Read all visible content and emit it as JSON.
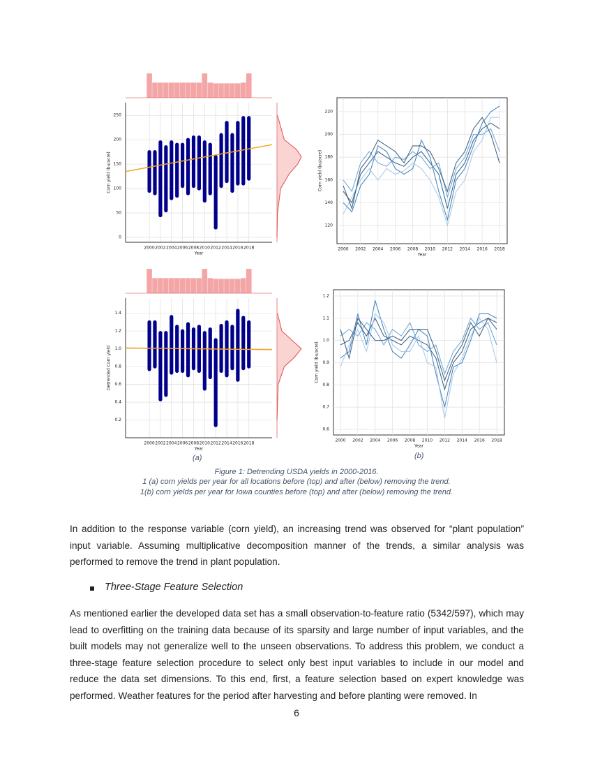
{
  "chart_data": [
    {
      "type": "strip",
      "x_label": "Year",
      "y_label": "Corn yield (bu/acre)",
      "x": [
        2000,
        2001,
        2002,
        2003,
        2004,
        2005,
        2006,
        2007,
        2008,
        2009,
        2010,
        2011,
        2012,
        2013,
        2014,
        2015,
        2016,
        2017,
        2018
      ],
      "min": [
        95,
        90,
        45,
        55,
        80,
        85,
        105,
        90,
        105,
        100,
        75,
        90,
        20,
        105,
        115,
        95,
        110,
        110,
        120
      ],
      "max": [
        175,
        175,
        195,
        185,
        195,
        190,
        190,
        200,
        205,
        205,
        195,
        190,
        165,
        210,
        235,
        210,
        235,
        245,
        245
      ],
      "color": "#00008b",
      "trend": {
        "x": [
          1995.7,
          2022.2
        ],
        "y": [
          135,
          190
        ],
        "color": "#f5a623"
      },
      "x_hist": {
        "bins": [
          1999.5,
          2000.5,
          2001.5,
          2002.5,
          2003.5,
          2004.5,
          2005.5,
          2006.5,
          2007.5,
          2008.5,
          2009.5,
          2010.5,
          2011.5,
          2012.5,
          2013.5,
          2014.5,
          2015.5,
          2016.5,
          2017.5,
          2018.5
        ],
        "counts": [
          1.6,
          1,
          1,
          1,
          1,
          1,
          1,
          1,
          1,
          1,
          1.6,
          1,
          0.95,
          0.95,
          0.95,
          0.95,
          0.95,
          1,
          1.6
        ],
        "color": "#f08080"
      },
      "y_density": {
        "y": [
          0,
          50,
          100,
          130,
          150,
          165,
          180,
          200,
          250
        ],
        "density": [
          0,
          0.02,
          0.15,
          0.5,
          0.85,
          1,
          0.8,
          0.3,
          0.02
        ],
        "color": "#e05050"
      },
      "xlim": [
        1995.7,
        2022.2
      ],
      "ylim": [
        -10,
        276
      ],
      "xticks": [
        2000,
        2002,
        2004,
        2006,
        2008,
        2010,
        2012,
        2014,
        2016,
        2018
      ],
      "yticks": [
        0,
        50,
        100,
        150,
        200,
        250
      ],
      "grid": true
    },
    {
      "type": "strip",
      "x_label": "Year",
      "y_label": "Detrended Corn yield",
      "x": [
        2000,
        2001,
        2002,
        2003,
        2004,
        2005,
        2006,
        2007,
        2008,
        2009,
        2010,
        2011,
        2012,
        2013,
        2014,
        2015,
        2016,
        2017,
        2018
      ],
      "min": [
        0.77,
        0.8,
        0.43,
        0.48,
        0.73,
        0.75,
        0.75,
        0.7,
        0.78,
        0.75,
        0.55,
        0.68,
        0.14,
        0.75,
        0.7,
        0.78,
        0.65,
        0.78,
        0.8
      ],
      "max": [
        1.3,
        1.3,
        1.18,
        1.18,
        1.36,
        1.25,
        1.2,
        1.28,
        1.22,
        1.25,
        1.18,
        1.22,
        1.1,
        1.26,
        1.3,
        1.25,
        1.43,
        1.35,
        1.3
      ],
      "color": "#00008b",
      "trend": {
        "x": [
          1995.7,
          2022.2
        ],
        "y": [
          1.01,
          0.99
        ],
        "color": "#f5a623"
      },
      "x_hist": {
        "bins": [
          1999.5,
          2000.5,
          2001.5,
          2002.5,
          2003.5,
          2004.5,
          2005.5,
          2006.5,
          2007.5,
          2008.5,
          2009.5,
          2010.5,
          2011.5,
          2012.5,
          2013.5,
          2014.5,
          2015.5,
          2016.5,
          2017.5,
          2018.5
        ],
        "counts": [
          1.6,
          1,
          1,
          1,
          1,
          1,
          1,
          1,
          1,
          1,
          1.6,
          1,
          0.95,
          0.95,
          0.95,
          0.95,
          0.95,
          1,
          1.6
        ],
        "color": "#f08080"
      },
      "y_density": {
        "y": [
          0.2,
          0.6,
          0.8,
          0.9,
          1.0,
          1.1,
          1.2,
          1.4
        ],
        "density": [
          0,
          0.05,
          0.3,
          0.7,
          1,
          0.6,
          0.2,
          0.02
        ],
        "color": "#e05050"
      },
      "xlim": [
        1995.7,
        2022.2
      ],
      "ylim": [
        0,
        1.57
      ],
      "xticks": [
        2000,
        2002,
        2004,
        2006,
        2008,
        2010,
        2012,
        2014,
        2016,
        2018
      ],
      "yticks": [
        0.2,
        0.4,
        0.6,
        0.8,
        {
          "value": 1,
          "label": "1.0"
        },
        1.2,
        1.4
      ],
      "grid": true
    },
    {
      "type": "line",
      "x_label": "Year",
      "y_label": "Corn yield (bu/acre)",
      "x": [
        2000,
        2001,
        2002,
        2003,
        2004,
        2005,
        2006,
        2007,
        2008,
        2009,
        2010,
        2011,
        2012,
        2013,
        2014,
        2015,
        2016,
        2017,
        2018
      ],
      "series": [
        {
          "color": "#1f4e79",
          "values": [
            150,
            140,
            165,
            175,
            185,
            180,
            175,
            172,
            180,
            185,
            175,
            165,
            135,
            165,
            175,
            195,
            205,
            210,
            205
          ]
        },
        {
          "color": "#2e75b6",
          "values": [
            140,
            132,
            155,
            165,
            190,
            185,
            170,
            165,
            170,
            195,
            180,
            150,
            125,
            160,
            170,
            190,
            210,
            220,
            225
          ]
        },
        {
          "color": "#5b9bd5",
          "values": [
            160,
            150,
            175,
            185,
            175,
            172,
            180,
            178,
            185,
            180,
            170,
            175,
            145,
            170,
            180,
            200,
            200,
            205,
            185
          ]
        },
        {
          "color": "#9dc3e6",
          "values": [
            130,
            145,
            160,
            170,
            160,
            170,
            165,
            168,
            175,
            170,
            160,
            145,
            120,
            150,
            160,
            185,
            195,
            215,
            215
          ]
        },
        {
          "color": "#274e6e",
          "values": [
            155,
            135,
            170,
            180,
            195,
            190,
            185,
            175,
            190,
            190,
            185,
            170,
            150,
            175,
            185,
            205,
            215,
            200,
            175
          ]
        }
      ],
      "xlim": [
        1999.28,
        2018.88
      ],
      "ylim": [
        104,
        232.3
      ],
      "xticks": [
        2000,
        2002,
        2004,
        2006,
        2008,
        2010,
        2012,
        2014,
        2016,
        2018
      ],
      "yticks": [
        120,
        140,
        160,
        180,
        200,
        220
      ],
      "grid": true
    },
    {
      "type": "line",
      "x_label": "Year",
      "y_label": "Corn yield (bu/acre)",
      "x": [
        2000,
        2001,
        2002,
        2003,
        2004,
        2005,
        2006,
        2007,
        2008,
        2009,
        2010,
        2011,
        2012,
        2013,
        2014,
        2015,
        2016,
        2017,
        2018
      ],
      "series": [
        {
          "color": "#1f4e79",
          "values": [
            0.98,
            1.0,
            1.08,
            1.02,
            1.1,
            1.02,
            1.0,
            0.98,
            1.02,
            1.0,
            0.98,
            0.92,
            0.78,
            0.9,
            0.95,
            1.05,
            1.08,
            1.1,
            1.05
          ]
        },
        {
          "color": "#2e75b6",
          "values": [
            0.92,
            0.95,
            1.12,
            0.98,
            1.18,
            1.05,
            0.95,
            0.92,
            0.98,
            1.05,
            1.02,
            0.85,
            0.7,
            0.88,
            0.9,
            1.0,
            1.12,
            1.12,
            1.1
          ]
        },
        {
          "color": "#5b9bd5",
          "values": [
            1.02,
            1.05,
            1.02,
            1.08,
            1.05,
            0.98,
            1.05,
            1.02,
            1.08,
            0.98,
            0.95,
            0.98,
            0.85,
            0.95,
            1.0,
            1.1,
            1.05,
            1.08,
            0.98
          ]
        },
        {
          "color": "#9dc3e6",
          "values": [
            0.88,
            0.98,
            1.05,
            0.95,
            1.12,
            1.08,
            0.98,
            0.95,
            0.95,
            1.02,
            0.9,
            0.88,
            0.65,
            0.85,
            0.92,
            1.02,
            1.1,
            1.05,
            0.9
          ]
        },
        {
          "color": "#274e6e",
          "values": [
            1.05,
            0.92,
            1.1,
            1.05,
            1.0,
            1.0,
            1.02,
            1.0,
            1.05,
            1.05,
            1.05,
            0.95,
            0.82,
            0.92,
            0.98,
            1.08,
            1.02,
            1.1,
            1.08
          ]
        }
      ],
      "xlim": [
        1999.2,
        2018.88
      ],
      "ylim": [
        0.575,
        1.228
      ],
      "xticks": [
        2000,
        2002,
        2004,
        2006,
        2008,
        2010,
        2012,
        2014,
        2016,
        2018
      ],
      "yticks": [
        0.6,
        0.7,
        0.8,
        0.9,
        {
          "value": 1,
          "label": "1.0"
        },
        1.1,
        1.2
      ],
      "grid": true
    }
  ],
  "figure": {
    "panel_labels": [
      "(a)",
      "(b)"
    ],
    "caption": [
      "Figure 1: Detrending USDA yields in 2000-2016.",
      "1 (a) corn yields per year for all locations before (top) and after (below) removing the trend.",
      "1(b) corn yields per year for Iowa counties before (top) and after (below) removing the trend."
    ]
  },
  "paragraphs": [
    "In addition to the response variable (corn yield), an increasing trend was observed for “plant population” input variable. Assuming multiplicative decomposition manner of the trends, a similar analysis was performed to remove the trend in plant population.",
    "As mentioned earlier the developed data set has a small observation-to-feature ratio (5342/597), which may lead to overfitting on the training data because of its sparsity and large number of input variables, and the built models may not generalize well to the unseen observations. To address this problem, we conduct a three-stage feature selection procedure to select only best input variables to include in our model and reduce the data set dimensions. To this end, first, a feature selection based on expert knowledge was performed. Weather features for the period after harvesting and before planting were removed. In"
  ],
  "section_heading": "Three-Stage Feature Selection",
  "page_number": "6"
}
